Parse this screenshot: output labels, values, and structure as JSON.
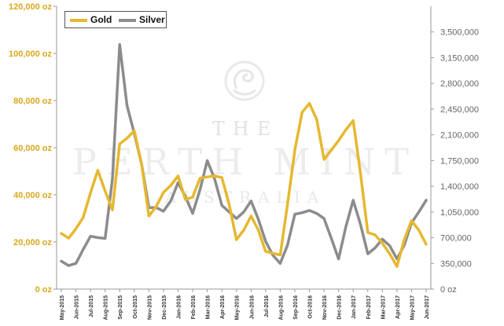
{
  "chart_data": {
    "type": "line",
    "title": "",
    "x_tick_labels": [
      "May-2015",
      "Jun-2015",
      "Jul-2015",
      "Aug-2015",
      "Sep-2015",
      "Oct-2015",
      "Nov-2015",
      "Dec-2015",
      "Jan-2016",
      "Feb-2016",
      "Mar-2016",
      "Apr-2016",
      "May-2016",
      "Jun-2016",
      "Jul-2016",
      "Aug-2016",
      "Sep-2016",
      "Oct-2016",
      "Nov-2016",
      "Dec-2016",
      "Jan-2017",
      "Feb-2017",
      "Mar-2017",
      "Apr-2017",
      "May-2017",
      "Jun-2017"
    ],
    "x": [
      "May-2015",
      "",
      "Jun-2015",
      "",
      "Jul-2015",
      "",
      "Aug-2015",
      "",
      "Sep-2015",
      "",
      "Oct-2015",
      "",
      "Nov-2015",
      "",
      "Dec-2015",
      "",
      "Jan-2016",
      "",
      "Feb-2016",
      "",
      "Mar-2016",
      "",
      "Apr-2016",
      "",
      "May-2016",
      "",
      "Jun-2016",
      "",
      "Jul-2016",
      "",
      "Aug-2016",
      "",
      "Sep-2016",
      "",
      "Oct-2016",
      "",
      "Nov-2016",
      "",
      "Dec-2016",
      "",
      "Jan-2017",
      "",
      "Feb-2017",
      "",
      "Mar-2017",
      "",
      "Apr-2017",
      "",
      "May-2017",
      "",
      "Jun-2017"
    ],
    "series": [
      {
        "name": "Gold",
        "axis": "left",
        "color": "#E6B830",
        "values": [
          23600,
          21600,
          25600,
          30400,
          40800,
          50400,
          41600,
          33600,
          61600,
          64000,
          67200,
          53000,
          31000,
          35000,
          41000,
          44000,
          48000,
          38000,
          39000,
          47000,
          47600,
          48000,
          47300,
          36000,
          21000,
          25000,
          31000,
          25000,
          16000,
          15200,
          14500,
          36000,
          59000,
          75000,
          78800,
          72000,
          55000,
          59000,
          63000,
          67600,
          71500,
          49000,
          24000,
          23000,
          19500,
          15000,
          9600,
          21000,
          29000,
          25000,
          19000
        ]
      },
      {
        "name": "Silver",
        "axis": "right",
        "color": "#8C8C8C",
        "values": [
          380000,
          320000,
          350000,
          540000,
          720000,
          700000,
          690000,
          1500000,
          3330000,
          2500000,
          2120000,
          1700000,
          1110000,
          1110000,
          1060000,
          1200000,
          1450000,
          1260000,
          1030000,
          1350000,
          1750000,
          1500000,
          1140000,
          1050000,
          960000,
          1050000,
          1200000,
          950000,
          650000,
          460000,
          350000,
          600000,
          1020000,
          1040000,
          1070000,
          1030000,
          960000,
          690000,
          410000,
          850000,
          1210000,
          880000,
          480000,
          560000,
          680000,
          590000,
          410000,
          600000,
          900000,
          1050000,
          1210000
        ]
      }
    ],
    "y_left": {
      "min": 0,
      "max": 120000,
      "ticks": [
        "0 oz",
        "20,000 oz",
        "40,000 oz",
        "60,000 oz",
        "80,000 oz",
        "100,000 oz",
        "120,000 oz"
      ]
    },
    "y_right": {
      "min": 0,
      "max": 3850000,
      "ticks": [
        "0 oz",
        "350,000",
        "700,000",
        "1,050,000",
        "1,400,000",
        "1,750,000",
        "2,100,000",
        "2,450,000",
        "2,800,000",
        "3,150,000",
        "3,500,000"
      ]
    },
    "legend": {
      "position": "top-left",
      "items": [
        "Gold",
        "Silver"
      ]
    },
    "left_axis_color": "#D9A81C",
    "right_axis_color": "#666666",
    "grid": false
  },
  "watermark": {
    "line1": "THE",
    "line2": "PERTH MINT",
    "line3": "AUSTRALIA",
    "logo": "swan-icon"
  }
}
